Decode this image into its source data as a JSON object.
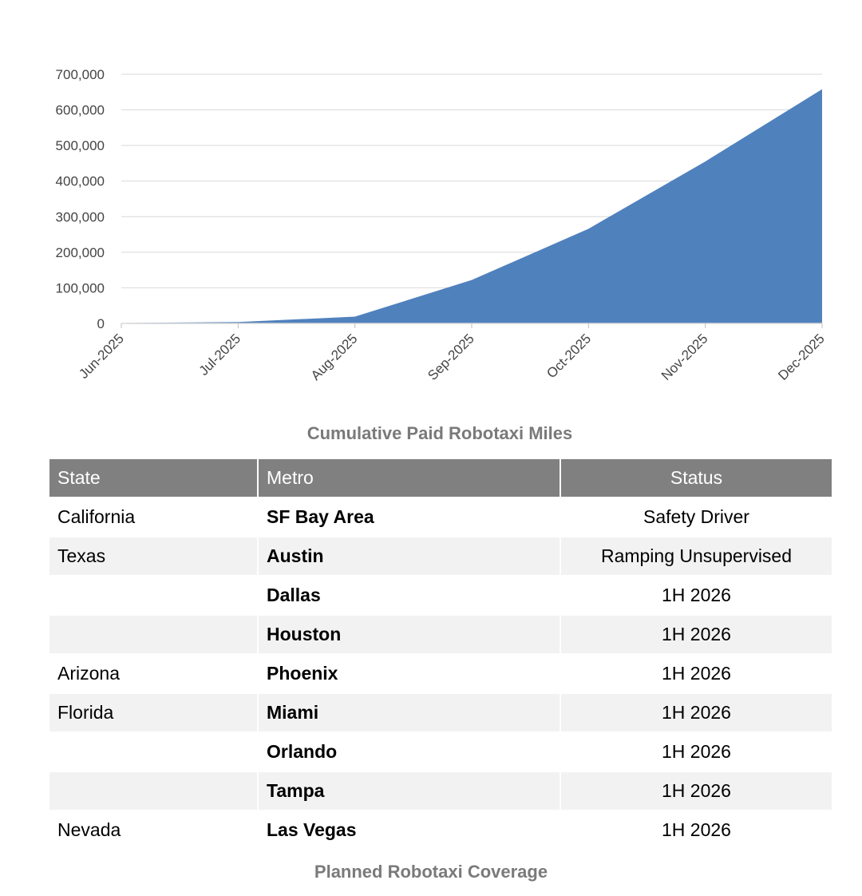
{
  "chart_data": {
    "type": "area",
    "title": "Cumulative Paid Robotaxi Miles",
    "categories": [
      "Jun-2025",
      "Jul-2025",
      "Aug-2025",
      "Sep-2025",
      "Oct-2025",
      "Nov-2025",
      "Dec-2025"
    ],
    "series": [
      {
        "values": [
          1000,
          4000,
          19000,
          122000,
          266000,
          455000,
          658000
        ]
      }
    ],
    "ylim": [
      0,
      700000
    ],
    "yticks": [
      0,
      100000,
      200000,
      300000,
      400000,
      500000,
      600000,
      700000
    ],
    "ytick_labels": [
      "0",
      "100,000",
      "200,000",
      "300,000",
      "400,000",
      "500,000",
      "600,000",
      "700,000"
    ],
    "grid": true,
    "fill_color": "#4f81bd",
    "xlabel": "",
    "ylabel": ""
  },
  "table": {
    "caption": "Planned Robotaxi Coverage",
    "headers": [
      "State",
      "Metro",
      "Status"
    ],
    "rows": [
      [
        "California",
        "SF Bay Area",
        "Safety Driver"
      ],
      [
        "Texas",
        "Austin",
        "Ramping Unsupervised"
      ],
      [
        "",
        "Dallas",
        "1H 2026"
      ],
      [
        "",
        "Houston",
        "1H 2026"
      ],
      [
        "Arizona",
        "Phoenix",
        "1H 2026"
      ],
      [
        "Florida",
        "Miami",
        "1H 2026"
      ],
      [
        "",
        "Orlando",
        "1H 2026"
      ],
      [
        "",
        "Tampa",
        "1H 2026"
      ],
      [
        "Nevada",
        "Las Vegas",
        "1H 2026"
      ]
    ],
    "header_color": "#808080",
    "stripe_color": "#f2f2f2"
  }
}
